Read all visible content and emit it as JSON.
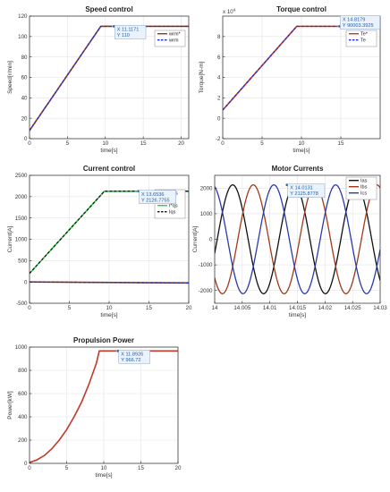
{
  "chart_data": [
    {
      "type": "line",
      "title": "Speed control",
      "xlabel": "time[s]",
      "ylabel": "Speed[r/min]",
      "xlim": [
        0,
        21
      ],
      "ylim": [
        0,
        120
      ],
      "xticks": [
        "0",
        "5",
        "10",
        "15",
        "20"
      ],
      "yticks": [
        "0",
        "20",
        "40",
        "60",
        "80",
        "100",
        "120"
      ],
      "grid": true,
      "legend_position": "upper-right",
      "series": [
        {
          "name": "wrm*",
          "color": "#8b3a1a",
          "style": "solid",
          "x": [
            0,
            9.4,
            21
          ],
          "y": [
            8,
            110,
            110
          ]
        },
        {
          "name": "wrm",
          "color": "#1f2bd1",
          "style": "dashed",
          "x": [
            0,
            9.4,
            21
          ],
          "y": [
            8,
            110,
            110
          ]
        }
      ],
      "datatip": {
        "x_text": "X 11.1171",
        "y_text": "Y 110",
        "x": 11.1171,
        "y": 110
      }
    },
    {
      "type": "line",
      "title": "Torque control",
      "xlabel": "time[s]",
      "ylabel": "Torque[N-m]",
      "exponent": "x 10^4",
      "xlim": [
        0,
        20
      ],
      "ylim": [
        -2,
        10
      ],
      "xticks": [
        "0",
        "5",
        "10",
        "15"
      ],
      "yticks": [
        "-2",
        "0",
        "2",
        "4",
        "6",
        "8"
      ],
      "grid": true,
      "legend_position": "upper-right",
      "series": [
        {
          "name": "Te*",
          "color": "#c0392b",
          "style": "solid",
          "x": [
            0,
            9.4,
            20
          ],
          "y": [
            0.8,
            9.0,
            9.0
          ]
        },
        {
          "name": "Te",
          "color": "#1f2bd1",
          "style": "dashed",
          "x": [
            0,
            9.4,
            20
          ],
          "y": [
            0.8,
            9.0,
            9.0
          ]
        }
      ],
      "datatip": {
        "x_text": "X 14.8179",
        "y_text": "Y 90003.3925",
        "x": 14.8179,
        "y": 9.0
      }
    },
    {
      "type": "line",
      "title": "Current control",
      "xlabel": "time[s]",
      "ylabel": "Current[A]",
      "xlim": [
        0,
        20
      ],
      "ylim": [
        -500,
        2500
      ],
      "xticks": [
        "0",
        "5",
        "10",
        "15",
        "20"
      ],
      "yticks": [
        "-500",
        "0",
        "500",
        "1000",
        "1500",
        "2000",
        "2500"
      ],
      "grid": true,
      "legend_position": "upper-right",
      "series": [
        {
          "name": "I*ds",
          "color": "#8b3a1a",
          "style": "solid",
          "x": [
            0,
            20
          ],
          "y": [
            0,
            -25
          ]
        },
        {
          "name": "Ids",
          "color": "#1f2bd1",
          "style": "dashed",
          "x": [
            0,
            20
          ],
          "y": [
            0,
            -25
          ]
        },
        {
          "name": "I*qs",
          "color": "#2ecc40",
          "style": "solid",
          "x": [
            0,
            9.4,
            20
          ],
          "y": [
            200,
            2127,
            2127
          ]
        },
        {
          "name": "Iqs",
          "color": "#111111",
          "style": "dashed",
          "x": [
            0,
            9.4,
            20
          ],
          "y": [
            200,
            2127,
            2127
          ]
        }
      ],
      "datatip": {
        "x_text": "X 13.6536",
        "y_text": "Y 2126.7755",
        "x": 13.6536,
        "y": 2126.7755
      }
    },
    {
      "type": "line",
      "title": "Motor Currents",
      "xlabel": "time[s]",
      "ylabel": "Current[A]",
      "xlim": [
        14,
        14.03
      ],
      "ylim": [
        -2500,
        2500
      ],
      "xticks": [
        "14",
        "14.005",
        "14.01",
        "14.015",
        "14.02",
        "14.025",
        "14.03"
      ],
      "yticks": [
        "-2000",
        "-1000",
        "0",
        "1000",
        "2000"
      ],
      "grid": true,
      "legend_position": "upper-right",
      "waveform": {
        "amplitude": 2127,
        "period": 0.0112,
        "phase_shift_deg": 120
      },
      "series": [
        {
          "name": "Ias",
          "color": "#111111",
          "phase_deg": -15
        },
        {
          "name": "Ibs",
          "color": "#a03a1a",
          "phase_deg": -135
        },
        {
          "name": "Ics",
          "color": "#2a3aa8",
          "phase_deg": 105
        }
      ],
      "datatip": {
        "x_text": "X 14.0131",
        "y_text": "Y 2125.8778",
        "x": 14.0131,
        "y": 2125.8778
      }
    },
    {
      "type": "line",
      "title": "Propulsion Power",
      "xlabel": "time[s]",
      "ylabel": "Power[kW]",
      "xlim": [
        0,
        20
      ],
      "ylim": [
        0,
        1000
      ],
      "xticks": [
        "0",
        "5",
        "10",
        "15",
        "20"
      ],
      "yticks": [
        "0",
        "200",
        "400",
        "600",
        "800",
        "1000"
      ],
      "grid": true,
      "series": [
        {
          "name": "Power",
          "color": "#c0392b",
          "style": "solid",
          "x": [
            0,
            1,
            2,
            3,
            4,
            5,
            6,
            7,
            8,
            9,
            9.4,
            20
          ],
          "y": [
            8,
            30,
            68,
            125,
            200,
            290,
            400,
            525,
            680,
            860,
            967,
            967
          ]
        }
      ],
      "datatip": {
        "x_text": "X 11.8926",
        "y_text": "Y 966.72",
        "x": 11.8926,
        "y": 966.72
      }
    }
  ]
}
